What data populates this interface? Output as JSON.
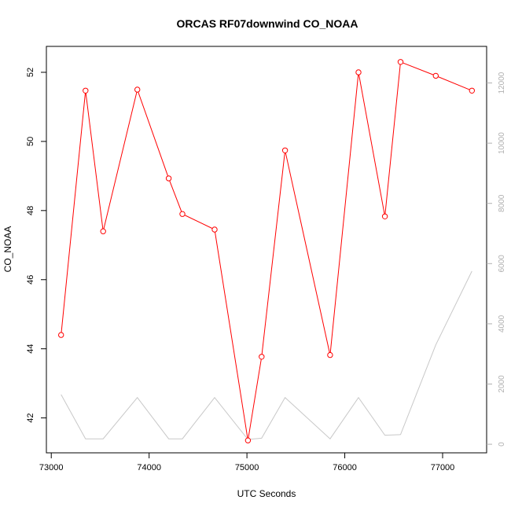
{
  "chart_data": {
    "type": "line",
    "title": "ORCAS RF07downwind CO_NOAA",
    "xlabel": "UTC Seconds",
    "ylabel": "CO_NOAA",
    "xlim": [
      72950,
      77450
    ],
    "ylim": [
      40.99,
      52.75
    ],
    "y2lim": [
      -285,
      13215
    ],
    "x_ticks": [
      73000,
      74000,
      75000,
      76000,
      77000
    ],
    "y_ticks": [
      42,
      44,
      46,
      48,
      50,
      52
    ],
    "y2_ticks": [
      0,
      2000,
      4000,
      6000,
      8000,
      10000,
      12000
    ],
    "grid": false,
    "series": [
      {
        "axis": "left",
        "color": "#ff0000",
        "marker": "open-circle",
        "x": [
          73100,
          73350,
          73530,
          73880,
          74200,
          74340,
          74670,
          75010,
          75150,
          75390,
          75850,
          76140,
          76410,
          76570,
          76930,
          77300
        ],
        "y": [
          44.4,
          51.47,
          47.4,
          51.5,
          48.93,
          47.9,
          47.45,
          41.35,
          43.77,
          49.74,
          43.82,
          52.0,
          47.83,
          52.3,
          51.9,
          51.47
        ]
      },
      {
        "axis": "right",
        "color": "#c8c8c8",
        "x": [
          73100,
          73350,
          73530,
          73880,
          74200,
          74340,
          74670,
          75010,
          75150,
          75390,
          75850,
          76140,
          76410,
          76570,
          76930,
          77300
        ],
        "y": [
          1650,
          180,
          180,
          1550,
          180,
          180,
          1550,
          160,
          200,
          1550,
          180,
          1550,
          300,
          320,
          3300,
          5750
        ]
      }
    ]
  }
}
